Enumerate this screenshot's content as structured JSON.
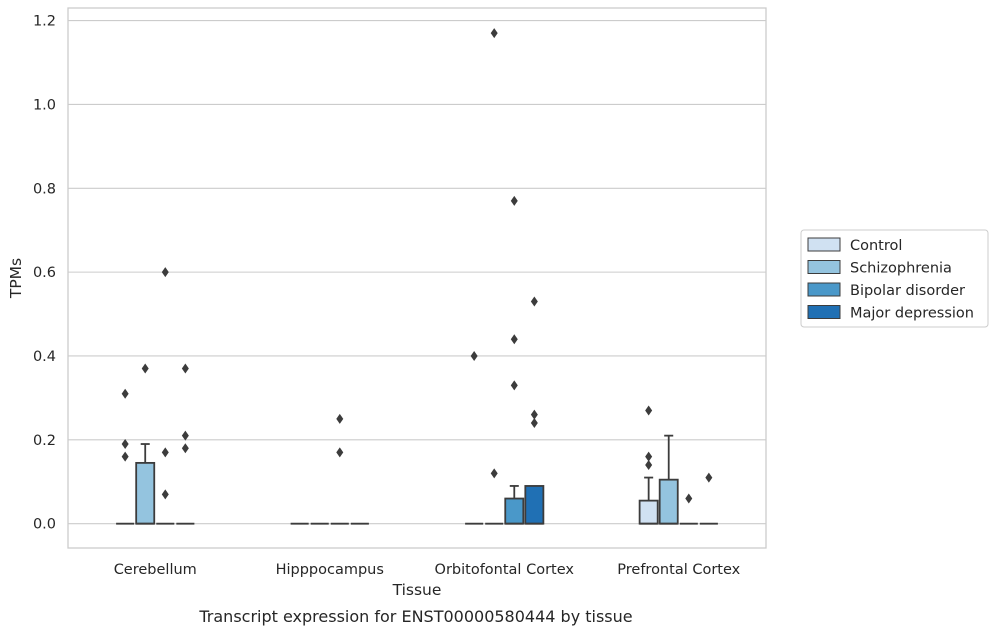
{
  "chart_data": {
    "type": "box",
    "caption": "Transcript expression for ENST00000580444 by tissue",
    "xlabel": "Tissue",
    "ylabel": "TPMs",
    "ylim": [
      -0.058,
      1.23
    ],
    "yticks": [
      0.0,
      0.2,
      0.4,
      0.6,
      0.8,
      1.0,
      1.2
    ],
    "ytick_labels": [
      "0.0",
      "0.2",
      "0.4",
      "0.6",
      "0.8",
      "1.0",
      "1.2"
    ],
    "grid": "horizontal",
    "legend_position": "right",
    "categories": [
      "Cerebellum",
      "Hipppocampus",
      "Orbitofontal Cortex",
      "Prefrontal Cortex"
    ],
    "series": [
      {
        "name": "Control",
        "color": "#d0e1f2",
        "boxes": [
          {
            "q1": 0,
            "median": 0,
            "q3": 0,
            "whisker_low": 0,
            "whisker_high": 0,
            "outliers": [
              0.31,
              0.19,
              0.16
            ]
          },
          {
            "q1": 0,
            "median": 0,
            "q3": 0,
            "whisker_low": 0,
            "whisker_high": 0,
            "outliers": []
          },
          {
            "q1": 0,
            "median": 0,
            "q3": 0,
            "whisker_low": 0,
            "whisker_high": 0,
            "outliers": [
              0.4
            ]
          },
          {
            "q1": 0,
            "median": 0,
            "q3": 0.055,
            "whisker_low": 0,
            "whisker_high": 0.11,
            "outliers": [
              0.27,
              0.16,
              0.14
            ]
          }
        ]
      },
      {
        "name": "Schizophrenia",
        "color": "#94c4df",
        "boxes": [
          {
            "q1": 0,
            "median": 0,
            "q3": 0.145,
            "whisker_low": 0,
            "whisker_high": 0.19,
            "outliers": [
              0.37
            ]
          },
          {
            "q1": 0,
            "median": 0,
            "q3": 0,
            "whisker_low": 0,
            "whisker_high": 0,
            "outliers": []
          },
          {
            "q1": 0,
            "median": 0,
            "q3": 0,
            "whisker_low": 0,
            "whisker_high": 0,
            "outliers": [
              1.17,
              0.12
            ]
          },
          {
            "q1": 0,
            "median": 0,
            "q3": 0.105,
            "whisker_low": 0,
            "whisker_high": 0.21,
            "outliers": []
          }
        ]
      },
      {
        "name": "Bipolar disorder",
        "color": "#4a98c9",
        "boxes": [
          {
            "q1": 0,
            "median": 0,
            "q3": 0,
            "whisker_low": 0,
            "whisker_high": 0,
            "outliers": [
              0.6,
              0.17,
              0.07
            ]
          },
          {
            "q1": 0,
            "median": 0,
            "q3": 0,
            "whisker_low": 0,
            "whisker_high": 0,
            "outliers": [
              0.25,
              0.17
            ]
          },
          {
            "q1": 0,
            "median": 0,
            "q3": 0.06,
            "whisker_low": 0,
            "whisker_high": 0.09,
            "outliers": [
              0.77,
              0.44,
              0.33
            ]
          },
          {
            "q1": 0,
            "median": 0,
            "q3": 0,
            "whisker_low": 0,
            "whisker_high": 0,
            "outliers": [
              0.06
            ]
          }
        ]
      },
      {
        "name": "Major depression",
        "color": "#2070b4",
        "boxes": [
          {
            "q1": 0,
            "median": 0,
            "q3": 0,
            "whisker_low": 0,
            "whisker_high": 0,
            "outliers": [
              0.37,
              0.21,
              0.18
            ]
          },
          {
            "q1": 0,
            "median": 0,
            "q3": 0,
            "whisker_low": 0,
            "whisker_high": 0,
            "outliers": []
          },
          {
            "q1": 0,
            "median": 0,
            "q3": 0.09,
            "whisker_low": 0,
            "whisker_high": 0.09,
            "outliers": [
              0.53,
              0.26,
              0.24
            ]
          },
          {
            "q1": 0,
            "median": 0,
            "q3": 0,
            "whisker_low": 0,
            "whisker_high": 0,
            "outliers": [
              0.11
            ]
          }
        ]
      }
    ]
  }
}
